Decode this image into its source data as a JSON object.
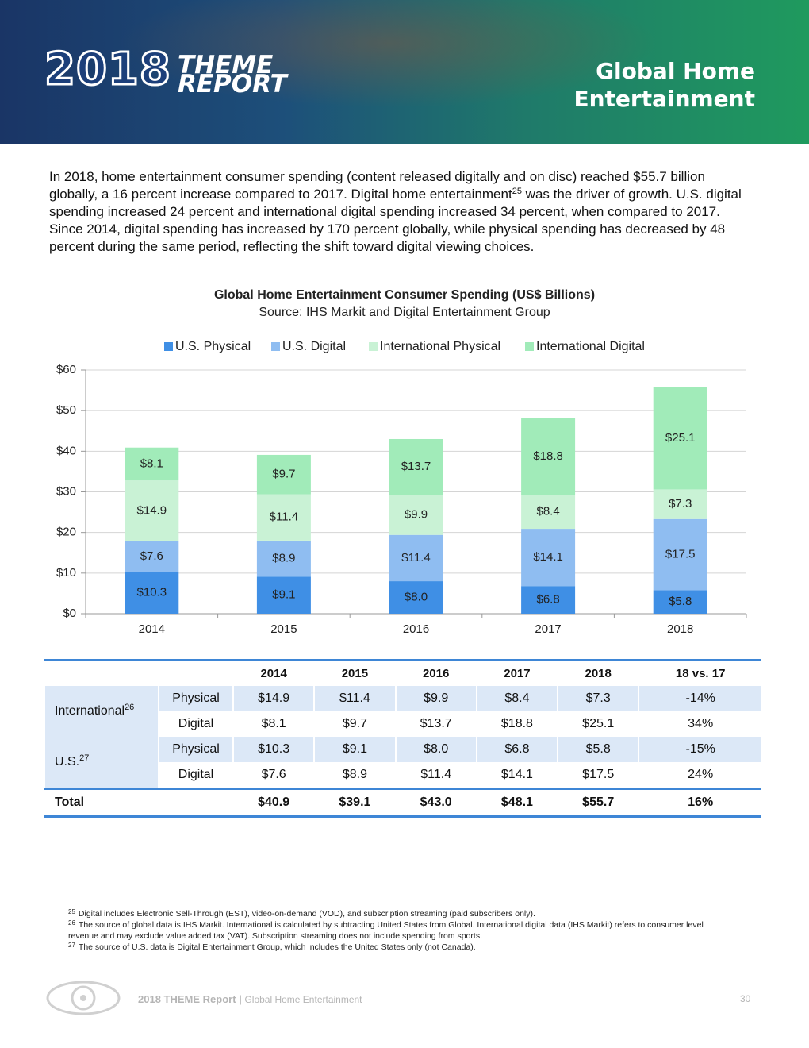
{
  "header": {
    "brand_year": "2018",
    "brand_line1": "THEME",
    "brand_line2": "REPORT",
    "title_line1": "Global Home",
    "title_line2": "Entertainment"
  },
  "intro": {
    "text_before": "In 2018, home entertainment consumer spending (content released digitally and on disc) reached $55.7 billion globally, a 16 percent increase compared to 2017. Digital home entertainment",
    "note": "25",
    "text_after": " was the driver of growth. U.S. digital spending increased 24 percent and international digital spending increased 34 percent, when compared to 2017. Since 2014, digital spending has increased by 170 percent globally, while physical spending has decreased by 48 percent during the same period, reflecting the shift toward digital viewing choices."
  },
  "chart_data": {
    "type": "stacked_bar",
    "title": "Global Home Entertainment Consumer Spending (US$ Billions)",
    "subtitle": "Source: IHS Markit and Digital Entertainment Group",
    "categories": [
      "2014",
      "2015",
      "2016",
      "2017",
      "2018"
    ],
    "series": [
      {
        "name": "U.S. Physical",
        "color": "#3f8fe5",
        "values": [
          10.3,
          9.1,
          8.0,
          6.8,
          5.8
        ],
        "value_labels": [
          "$10.3",
          "$9.1",
          "$8.0",
          "$6.8",
          "$5.8"
        ]
      },
      {
        "name": "U.S. Digital",
        "color": "#8fbdf1",
        "values": [
          7.6,
          8.9,
          11.4,
          14.1,
          17.5
        ],
        "value_labels": [
          "$7.6",
          "$8.9",
          "$11.4",
          "$14.1",
          "$17.5"
        ]
      },
      {
        "name": "International Physical",
        "color": "#c9f2d5",
        "values": [
          14.9,
          11.4,
          9.9,
          8.4,
          7.3
        ],
        "value_labels": [
          "$14.9",
          "$11.4",
          "$9.9",
          "$8.4",
          "$7.3"
        ]
      },
      {
        "name": "International Digital",
        "color": "#a1ebb9",
        "values": [
          8.1,
          9.7,
          13.7,
          18.8,
          25.1
        ],
        "value_labels": [
          "$8.1",
          "$9.7",
          "$13.7",
          "$18.8",
          "$25.1"
        ]
      }
    ],
    "ylim": [
      0,
      60
    ],
    "yticks": [
      {
        "value": 0,
        "label": "$0"
      },
      {
        "value": 10,
        "label": "$10"
      },
      {
        "value": 20,
        "label": "$20"
      },
      {
        "value": 30,
        "label": "$30"
      },
      {
        "value": 40,
        "label": "$40"
      },
      {
        "value": 50,
        "label": "$50"
      },
      {
        "value": 60,
        "label": "$60"
      }
    ],
    "grid": true,
    "legend": "top"
  },
  "table": {
    "header": [
      "2014",
      "2015",
      "2016",
      "2017",
      "2018",
      "18 vs. 17"
    ],
    "groups": [
      {
        "label": "International",
        "note": "26",
        "rows": [
          {
            "label": "Physical",
            "cells": [
              "$14.9",
              "$11.4",
              "$9.9",
              "$8.4",
              "$7.3",
              "-14%"
            ]
          },
          {
            "label": "Digital",
            "cells": [
              "$8.1",
              "$9.7",
              "$13.7",
              "$18.8",
              "$25.1",
              "34%"
            ]
          }
        ]
      },
      {
        "label": "U.S.",
        "note": "27",
        "rows": [
          {
            "label": "Physical",
            "cells": [
              "$10.3",
              "$9.1",
              "$8.0",
              "$6.8",
              "$5.8",
              "-15%"
            ]
          },
          {
            "label": "Digital",
            "cells": [
              "$7.6",
              "$8.9",
              "$11.4",
              "$14.1",
              "$17.5",
              "24%"
            ]
          }
        ]
      }
    ],
    "total": {
      "label": "Total",
      "cells": [
        "$40.9",
        "$39.1",
        "$43.0",
        "$48.1",
        "$55.7",
        "16%"
      ]
    }
  },
  "footnotes": [
    {
      "num": "25",
      "text": "Digital includes Electronic Sell-Through (EST), video-on-demand (VOD), and subscription streaming (paid subscribers only)."
    },
    {
      "num": "26",
      "text": "The source of global data is IHS Markit. International is calculated by subtracting United States from Global. International digital data (IHS Markit) refers to consumer level revenue and may exclude value added tax (VAT). Subscription streaming does not include spending from sports."
    },
    {
      "num": "27",
      "text": "The source of U.S. data is Digital Entertainment Group, which includes the United States only (not Canada)."
    }
  ],
  "footer": {
    "report": "2018 THEME Report",
    "separator": "|",
    "section": "Global Home Entertainment",
    "page": "30"
  }
}
